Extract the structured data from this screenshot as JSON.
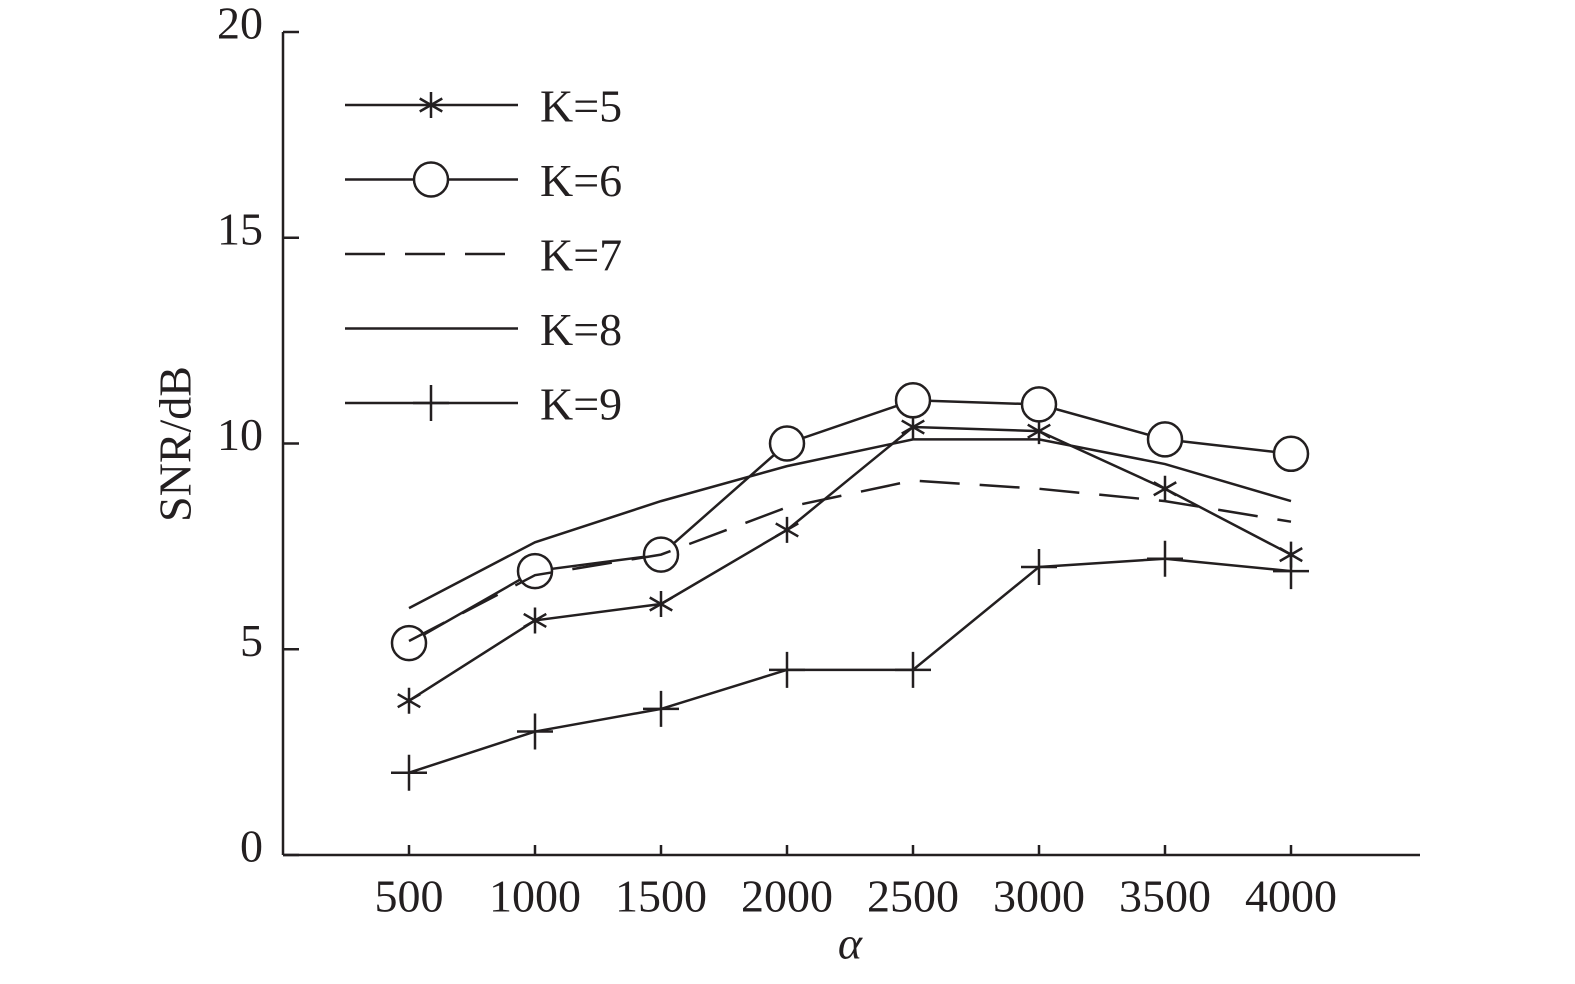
{
  "chart_data": {
    "type": "line",
    "x_label": "α",
    "y_label": "SNR/dB",
    "x": [
      500,
      1000,
      1500,
      2000,
      2500,
      3000,
      3500,
      4000
    ],
    "xlim": [
      0,
      4500
    ],
    "xticks": [
      500,
      1000,
      1500,
      2000,
      2500,
      3000,
      3500,
      4000
    ],
    "ylim": [
      0,
      20
    ],
    "yticks": [
      0,
      5,
      10,
      15,
      20
    ],
    "legend": "upper left",
    "series": [
      {
        "name": "K=5",
        "color": "#231f20",
        "marker": "asterisk",
        "dash": "solid",
        "values": [
          3.75,
          5.7,
          6.1,
          7.9,
          10.4,
          10.3,
          8.9,
          7.3
        ]
      },
      {
        "name": "K=6",
        "color": "#231f20",
        "marker": "circle",
        "dash": "solid",
        "values": [
          5.15,
          6.9,
          7.3,
          10.0,
          11.05,
          10.95,
          10.1,
          9.75
        ]
      },
      {
        "name": "K=7",
        "color": "#231f20",
        "marker": "none",
        "dash": "dashed",
        "values": [
          5.2,
          6.8,
          7.3,
          8.45,
          9.1,
          8.9,
          8.6,
          8.1
        ]
      },
      {
        "name": "K=8",
        "color": "#231f20",
        "marker": "none",
        "dash": "solid",
        "values": [
          6.0,
          7.6,
          8.6,
          9.45,
          10.1,
          10.1,
          9.5,
          8.6
        ]
      },
      {
        "name": "K=9",
        "color": "#231f20",
        "marker": "plus",
        "dash": "solid",
        "values": [
          2.0,
          3.0,
          3.55,
          4.5,
          4.5,
          7.0,
          7.2,
          6.9
        ]
      }
    ]
  }
}
